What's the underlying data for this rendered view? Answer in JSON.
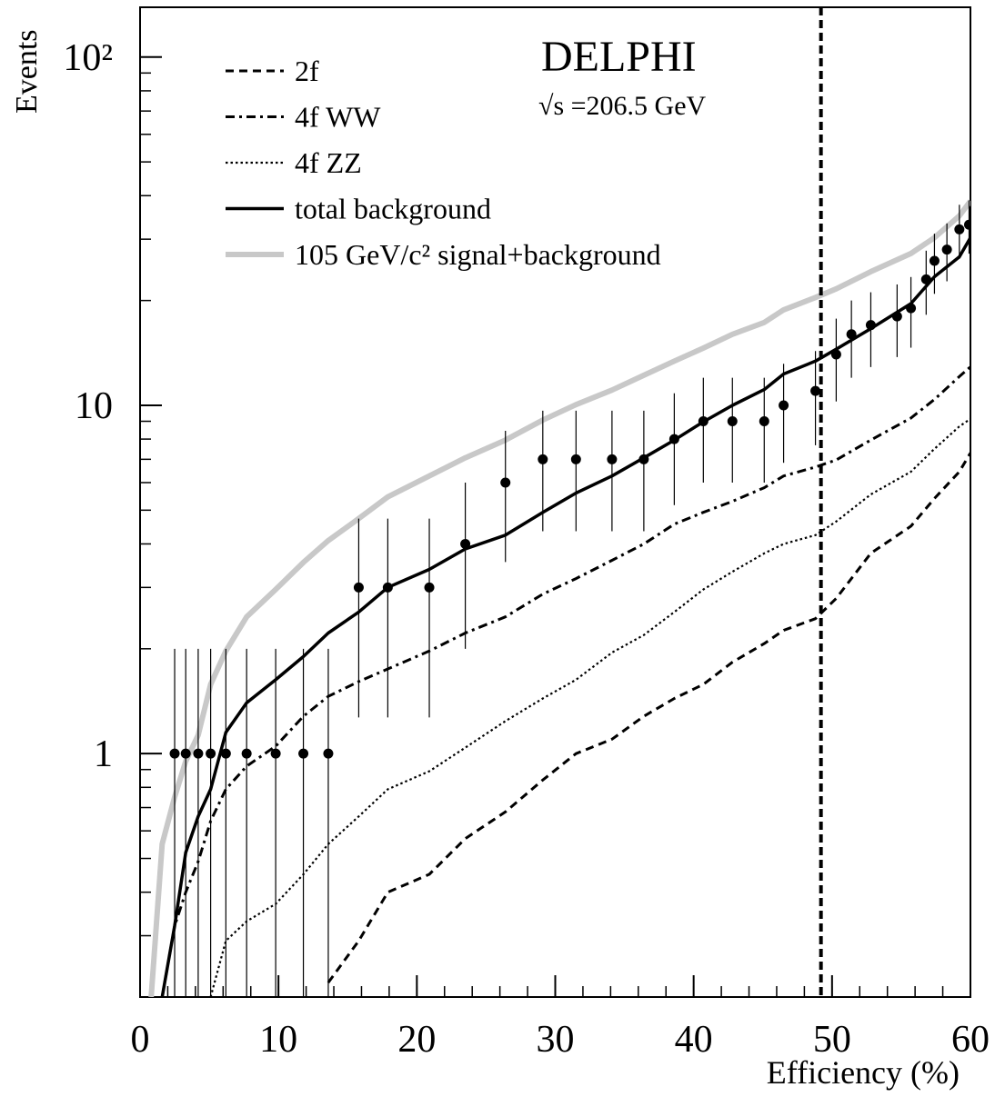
{
  "chart_data": {
    "type": "line",
    "title": "DELPHI",
    "subtitle": "√s =206.5 GeV",
    "x_label": "Efficiency (%)",
    "y_label": "Events",
    "log_y": true,
    "legend": "upper left",
    "xlim": [
      0,
      60
    ],
    "ylim": [
      0.2,
      139
    ],
    "xticks": [
      0,
      10,
      20,
      30,
      40,
      50,
      60
    ],
    "yticks": [
      1,
      10,
      {
        "value": 100,
        "label": "10²"
      }
    ],
    "vline": 49.2,
    "x": [
      0.8,
      1.6,
      2.5,
      3.3,
      4.2,
      5.1,
      6.2,
      7.7,
      9.8,
      11.8,
      13.6,
      15.8,
      17.9,
      20.9,
      23.5,
      26.4,
      29.1,
      31.5,
      34.1,
      36.4,
      38.6,
      40.7,
      42.8,
      45.1,
      46.5,
      48.8,
      50.3,
      52.8,
      55.7,
      57.4,
      59.2,
      60
    ],
    "series": [
      {
        "name": "2f",
        "color": "#000000",
        "style": "dashed",
        "values": [
          null,
          null,
          null,
          null,
          null,
          null,
          null,
          null,
          null,
          null,
          0.22,
          0.29,
          0.4,
          0.45,
          0.57,
          0.68,
          0.84,
          1.0,
          1.1,
          1.28,
          1.44,
          1.58,
          1.83,
          2.07,
          2.26,
          2.44,
          2.79,
          3.76,
          4.5,
          5.4,
          6.45,
          7.3
        ]
      },
      {
        "name": "4f WW",
        "color": "#000000",
        "style": "dashdot",
        "values": [
          null,
          0.2,
          0.32,
          0.4,
          0.49,
          0.64,
          0.79,
          0.92,
          1.05,
          1.28,
          1.46,
          1.61,
          1.75,
          1.97,
          2.22,
          2.47,
          2.87,
          3.18,
          3.59,
          4.0,
          4.56,
          4.93,
          5.3,
          5.8,
          6.27,
          6.65,
          6.97,
          7.95,
          9.2,
          10.4,
          12.1,
          12.9
        ]
      },
      {
        "name": "4f ZZ",
        "color": "#000000",
        "style": "dotted",
        "values": [
          null,
          null,
          null,
          null,
          null,
          0.2,
          0.29,
          0.33,
          0.37,
          0.45,
          0.55,
          0.66,
          0.79,
          0.89,
          1.04,
          1.24,
          1.44,
          1.63,
          1.95,
          2.19,
          2.55,
          2.96,
          3.33,
          3.76,
          4.0,
          4.24,
          4.64,
          5.55,
          6.45,
          7.5,
          8.7,
          9.14
        ]
      },
      {
        "name": "total background",
        "color": "#000000",
        "style": "solid",
        "values": [
          null,
          0.2,
          0.32,
          0.52,
          0.66,
          0.79,
          1.15,
          1.4,
          1.63,
          1.9,
          2.22,
          2.55,
          3.0,
          3.38,
          3.87,
          4.24,
          4.93,
          5.6,
          6.27,
          7.07,
          7.95,
          8.97,
          10,
          11.1,
          12.3,
          13.4,
          14.5,
          16.6,
          19.6,
          23.4,
          26.7,
          30.3
        ]
      },
      {
        "name": "105 GeV/c² signal+background",
        "color": "#c8c8c8",
        "style": "thick",
        "values": [
          0.2,
          0.55,
          0.75,
          0.95,
          1.13,
          1.58,
          1.97,
          2.47,
          2.96,
          3.54,
          4.09,
          4.73,
          5.46,
          6.27,
          7.07,
          7.95,
          9.07,
          10.05,
          11.06,
          12.2,
          13.4,
          14.6,
          16.0,
          17.3,
          18.8,
          20.4,
          21.6,
          24.2,
          27.3,
          30.3,
          35.0,
          38.6
        ]
      }
    ],
    "data_points": {
      "color": "#000000",
      "x": [
        2.5,
        3.3,
        4.2,
        5.1,
        6.2,
        7.7,
        9.8,
        11.8,
        13.6,
        15.8,
        17.9,
        20.9,
        23.5,
        26.4,
        29.1,
        31.5,
        34.1,
        36.4,
        38.6,
        40.7,
        42.8,
        45.1,
        46.5,
        48.8,
        50.3,
        51.4,
        52.8,
        54.7,
        55.7,
        56.8,
        57.4,
        58.3,
        59.2,
        59.9
      ],
      "values": [
        1,
        1,
        1,
        1,
        1,
        1,
        1,
        1,
        1,
        3,
        3,
        3,
        4,
        6,
        7,
        7,
        7,
        7,
        8,
        9,
        9,
        9,
        10,
        11,
        14,
        16,
        17,
        18,
        19,
        23,
        26,
        28,
        32,
        33
      ],
      "errors": [
        1,
        1,
        1,
        1,
        1,
        1,
        1,
        1,
        1,
        1.73,
        1.73,
        1.73,
        2,
        2.45,
        2.65,
        2.65,
        2.65,
        2.65,
        2.83,
        3,
        3,
        3,
        3.16,
        3.32,
        3.74,
        4,
        4.12,
        4.24,
        4.36,
        4.8,
        5.1,
        5.29,
        5.66,
        5.74
      ]
    }
  }
}
